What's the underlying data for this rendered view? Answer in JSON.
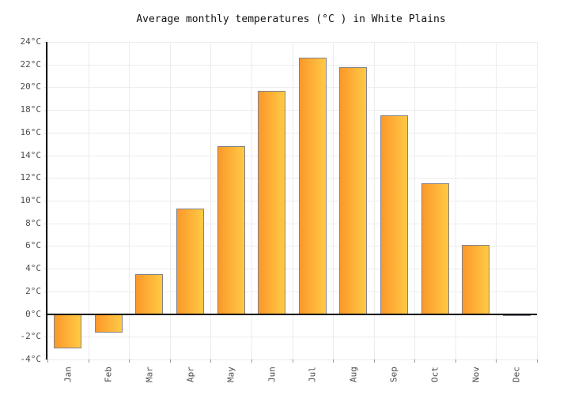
{
  "chart_data": {
    "type": "bar",
    "title": "Average monthly temperatures (°C ) in White Plains",
    "categories": [
      "Jan",
      "Feb",
      "Mar",
      "Apr",
      "May",
      "Jun",
      "Jul",
      "Aug",
      "Sep",
      "Oct",
      "Nov",
      "Dec"
    ],
    "values": [
      -3.0,
      -1.6,
      3.5,
      9.3,
      14.8,
      19.7,
      22.6,
      21.8,
      17.5,
      11.5,
      6.1,
      -0.2
    ],
    "unit": "°C",
    "xlabel": "",
    "ylabel": "",
    "ylim": [
      -4,
      24
    ],
    "ytick_step": 2,
    "y_ticks": [
      {
        "v": 24,
        "label": "24°C"
      },
      {
        "v": 22,
        "label": "22°C"
      },
      {
        "v": 20,
        "label": "20°C"
      },
      {
        "v": 18,
        "label": "18°C"
      },
      {
        "v": 16,
        "label": "16°C"
      },
      {
        "v": 14,
        "label": "14°C"
      },
      {
        "v": 12,
        "label": "12°C"
      },
      {
        "v": 10,
        "label": "10°C"
      },
      {
        "v": 8,
        "label": "8°C"
      },
      {
        "v": 6,
        "label": "6°C"
      },
      {
        "v": 4,
        "label": "4°C"
      },
      {
        "v": 2,
        "label": "2°C"
      },
      {
        "v": 0,
        "label": "0°C"
      },
      {
        "v": -2,
        "label": "-2°C"
      },
      {
        "v": -4,
        "label": "-4°C"
      }
    ],
    "grid": true,
    "legend": false,
    "colors": {
      "bar_gradient_left": "#fb982a",
      "bar_gradient_right": "#ffca45",
      "bar_border": "#82828c",
      "gridline": "#ececec",
      "axis_line": "#000000",
      "zero_line": "#000000",
      "tick_label": "#4d4d4d",
      "title_text": "#111111",
      "background": "#ffffff"
    }
  }
}
